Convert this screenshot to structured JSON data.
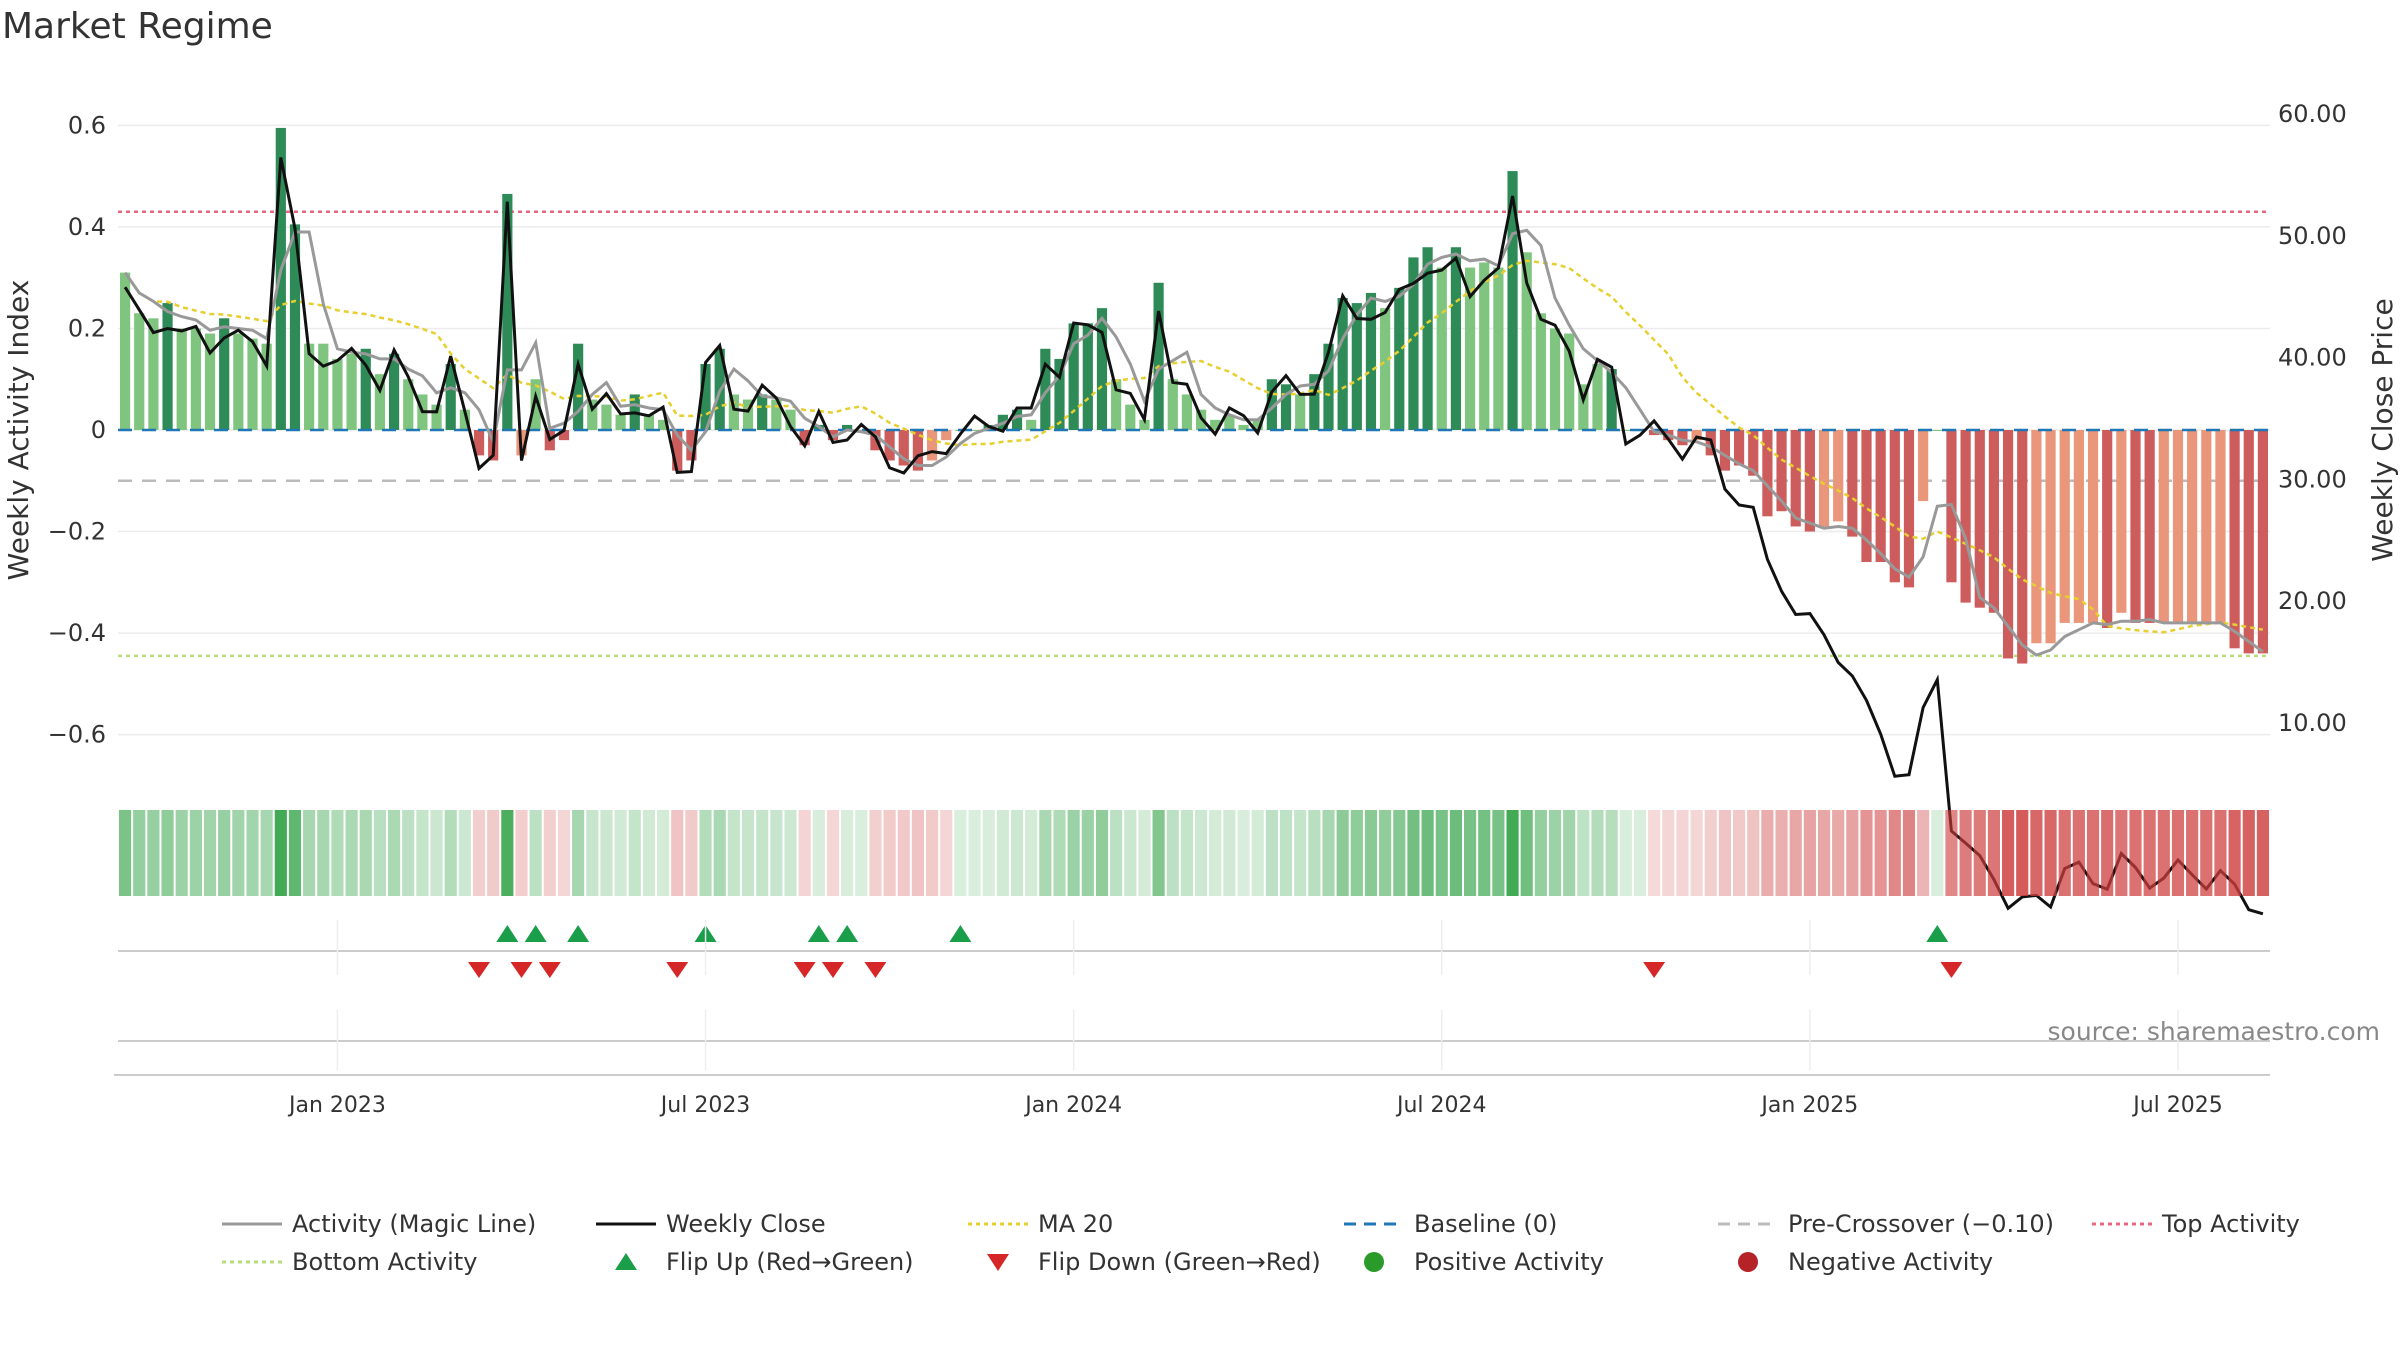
{
  "title": "Market Regime",
  "source": "source: sharemaestro.com",
  "colors": {
    "pos_dark": "#2e8b57",
    "pos_light": "#7fc47f",
    "neg_dark": "#cd5c5c",
    "neg_light": "#e9967a",
    "magic": "#999999",
    "close": "#111111",
    "ma20": "#e6cf2e",
    "baseline": "#1f77b4",
    "pre": "#bbbbbb",
    "top": "#e8677f",
    "bottom": "#b7dd7c",
    "flip_up": "#1a9e4a",
    "flip_down": "#d62728",
    "pos_dot": "#2a9a2a",
    "neg_dot": "#b52228"
  },
  "chart_data": {
    "type": "bar",
    "ylabel_left": "Weekly Activity Index",
    "ylabel_right": "Weekly Close Price",
    "ylim_left": [
      -0.65,
      0.65
    ],
    "ylim_right": [
      5,
      65
    ],
    "left_ticks": [
      "0.6",
      "0.4",
      "0.2",
      "0",
      "−0.2",
      "−0.4",
      "−0.6"
    ],
    "left_tick_values": [
      0.6,
      0.4,
      0.2,
      0,
      -0.2,
      -0.4,
      -0.6
    ],
    "right_ticks": [
      "60.00",
      "50.00",
      "40.00",
      "30.00",
      "20.00",
      "10.00"
    ],
    "right_tick_values": [
      60,
      50,
      40,
      30,
      20,
      10
    ],
    "x_ticks": [
      "Jan 2023",
      "Jul 2023",
      "Jan 2024",
      "Jul 2024",
      "Jan 2025",
      "Jul 2025"
    ],
    "x_tick_weeks": [
      15,
      41,
      67,
      93,
      119,
      145
    ],
    "top_activity": 0.43,
    "bottom_activity": -0.445,
    "pre_crossover": -0.1,
    "baseline": 0,
    "activity": [
      0.31,
      0.23,
      0.22,
      0.25,
      0.2,
      0.2,
      0.19,
      0.22,
      0.19,
      0.18,
      0.17,
      0.595,
      0.405,
      0.17,
      0.17,
      0.14,
      0.15,
      0.16,
      0.11,
      0.15,
      0.1,
      0.07,
      0.05,
      0.13,
      0.04,
      -0.05,
      -0.06,
      0.465,
      -0.05,
      0.1,
      -0.04,
      -0.02,
      0.17,
      0.06,
      0.05,
      0.03,
      0.07,
      0.03,
      0.02,
      -0.08,
      -0.06,
      0.13,
      0.16,
      0.07,
      0.06,
      0.07,
      0.06,
      0.04,
      -0.03,
      0.01,
      -0.02,
      0.01,
      0.0,
      -0.04,
      -0.06,
      -0.07,
      -0.08,
      -0.06,
      -0.02,
      0.0,
      0.0,
      0.01,
      0.03,
      0.04,
      0.02,
      0.16,
      0.14,
      0.21,
      0.21,
      0.24,
      0.1,
      0.05,
      0.02,
      0.29,
      0.1,
      0.07,
      0.04,
      0.02,
      0.03,
      0.01,
      0.02,
      0.1,
      0.09,
      0.07,
      0.11,
      0.17,
      0.26,
      0.25,
      0.27,
      0.24,
      0.28,
      0.34,
      0.36,
      0.32,
      0.36,
      0.32,
      0.33,
      0.32,
      0.51,
      0.35,
      0.23,
      0.2,
      0.19,
      0.09,
      0.13,
      0.12,
      0.0,
      0.0,
      -0.01,
      -0.02,
      -0.03,
      -0.02,
      -0.05,
      -0.08,
      -0.07,
      -0.09,
      -0.17,
      -0.16,
      -0.19,
      -0.2,
      -0.19,
      -0.18,
      -0.21,
      -0.26,
      -0.26,
      -0.3,
      -0.31,
      -0.14,
      0.0,
      -0.3,
      -0.34,
      -0.35,
      -0.36,
      -0.45,
      -0.46,
      -0.42,
      -0.42,
      -0.38,
      -0.38,
      -0.38,
      -0.39,
      -0.36,
      -0.38,
      -0.38,
      -0.38,
      -0.38,
      -0.38,
      -0.38,
      -0.38,
      -0.43,
      -0.44,
      -0.44
    ]
  },
  "legend": [
    {
      "label": "Activity (Magic Line)",
      "kind": "line",
      "color": "#999999",
      "dash": ""
    },
    {
      "label": "Weekly Close",
      "kind": "line",
      "color": "#111111",
      "dash": ""
    },
    {
      "label": "MA 20",
      "kind": "line",
      "color": "#e6cf2e",
      "dash": "4,4"
    },
    {
      "label": "Baseline (0)",
      "kind": "line",
      "color": "#1f77b4",
      "dash": "12,8"
    },
    {
      "label": "Pre-Crossover (−0.10)",
      "kind": "line",
      "color": "#bbbbbb",
      "dash": "12,8"
    },
    {
      "label": "Top Activity",
      "kind": "line",
      "color": "#e8677f",
      "dash": "4,4"
    },
    {
      "label": "Bottom Activity",
      "kind": "line",
      "color": "#b7dd7c",
      "dash": "4,4"
    },
    {
      "label": "Flip Up (Red→Green)",
      "kind": "up",
      "color": "#1a9e4a",
      "dash": ""
    },
    {
      "label": "Flip Down (Green→Red)",
      "kind": "down",
      "color": "#d62728",
      "dash": ""
    },
    {
      "label": "Positive Activity",
      "kind": "dot",
      "color": "#2a9a2a",
      "dash": ""
    },
    {
      "label": "Negative Activity",
      "kind": "dot",
      "color": "#b52228",
      "dash": ""
    }
  ]
}
